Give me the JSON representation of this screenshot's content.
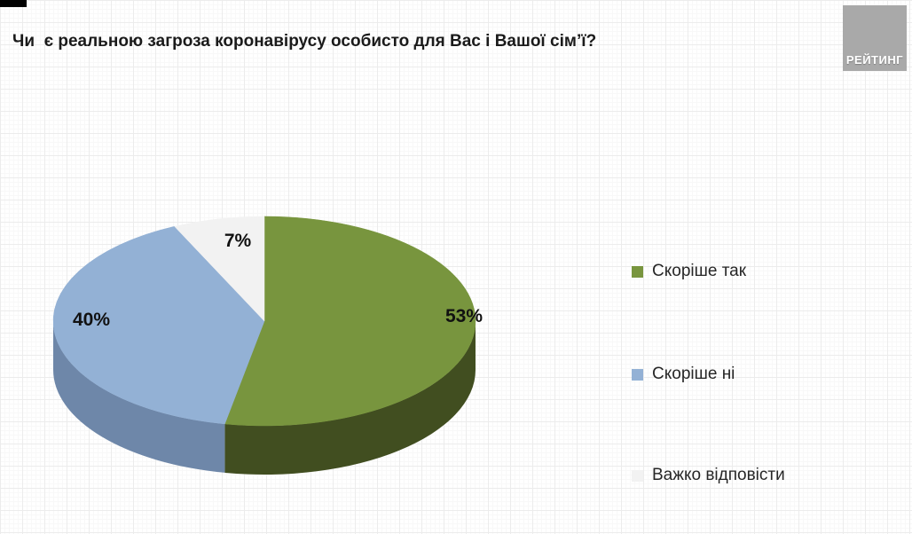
{
  "header": {
    "title": "Чи  є реальною загроза коронавірусу особисто для Вас і Вашої сім’ї?",
    "logo_text": "РЕЙТИНГ"
  },
  "chart_data": {
    "type": "pie",
    "style": "3d",
    "title": "Чи  є реальною загроза коронавірусу особисто для Вас і Вашої сім’ї?",
    "start_angle_deg": 0,
    "direction": "clockwise",
    "legend_position": "right",
    "slices": [
      {
        "label": "Скоріше так",
        "value": 53,
        "display": "53%",
        "color": "#78953E",
        "side_color": "#414E20"
      },
      {
        "label": "Скоріше ні",
        "value": 40,
        "display": "40%",
        "color": "#93B1D5",
        "side_color": "#6E87A9"
      },
      {
        "label": "Важко відповісти",
        "value": 7,
        "display": "7%",
        "color": "#F2F2F2",
        "side_color": "#D0D0D0"
      }
    ],
    "colors": {
      "label_text": "#111111",
      "legend_text": "#262626",
      "title_text": "#1a1a1a"
    }
  }
}
